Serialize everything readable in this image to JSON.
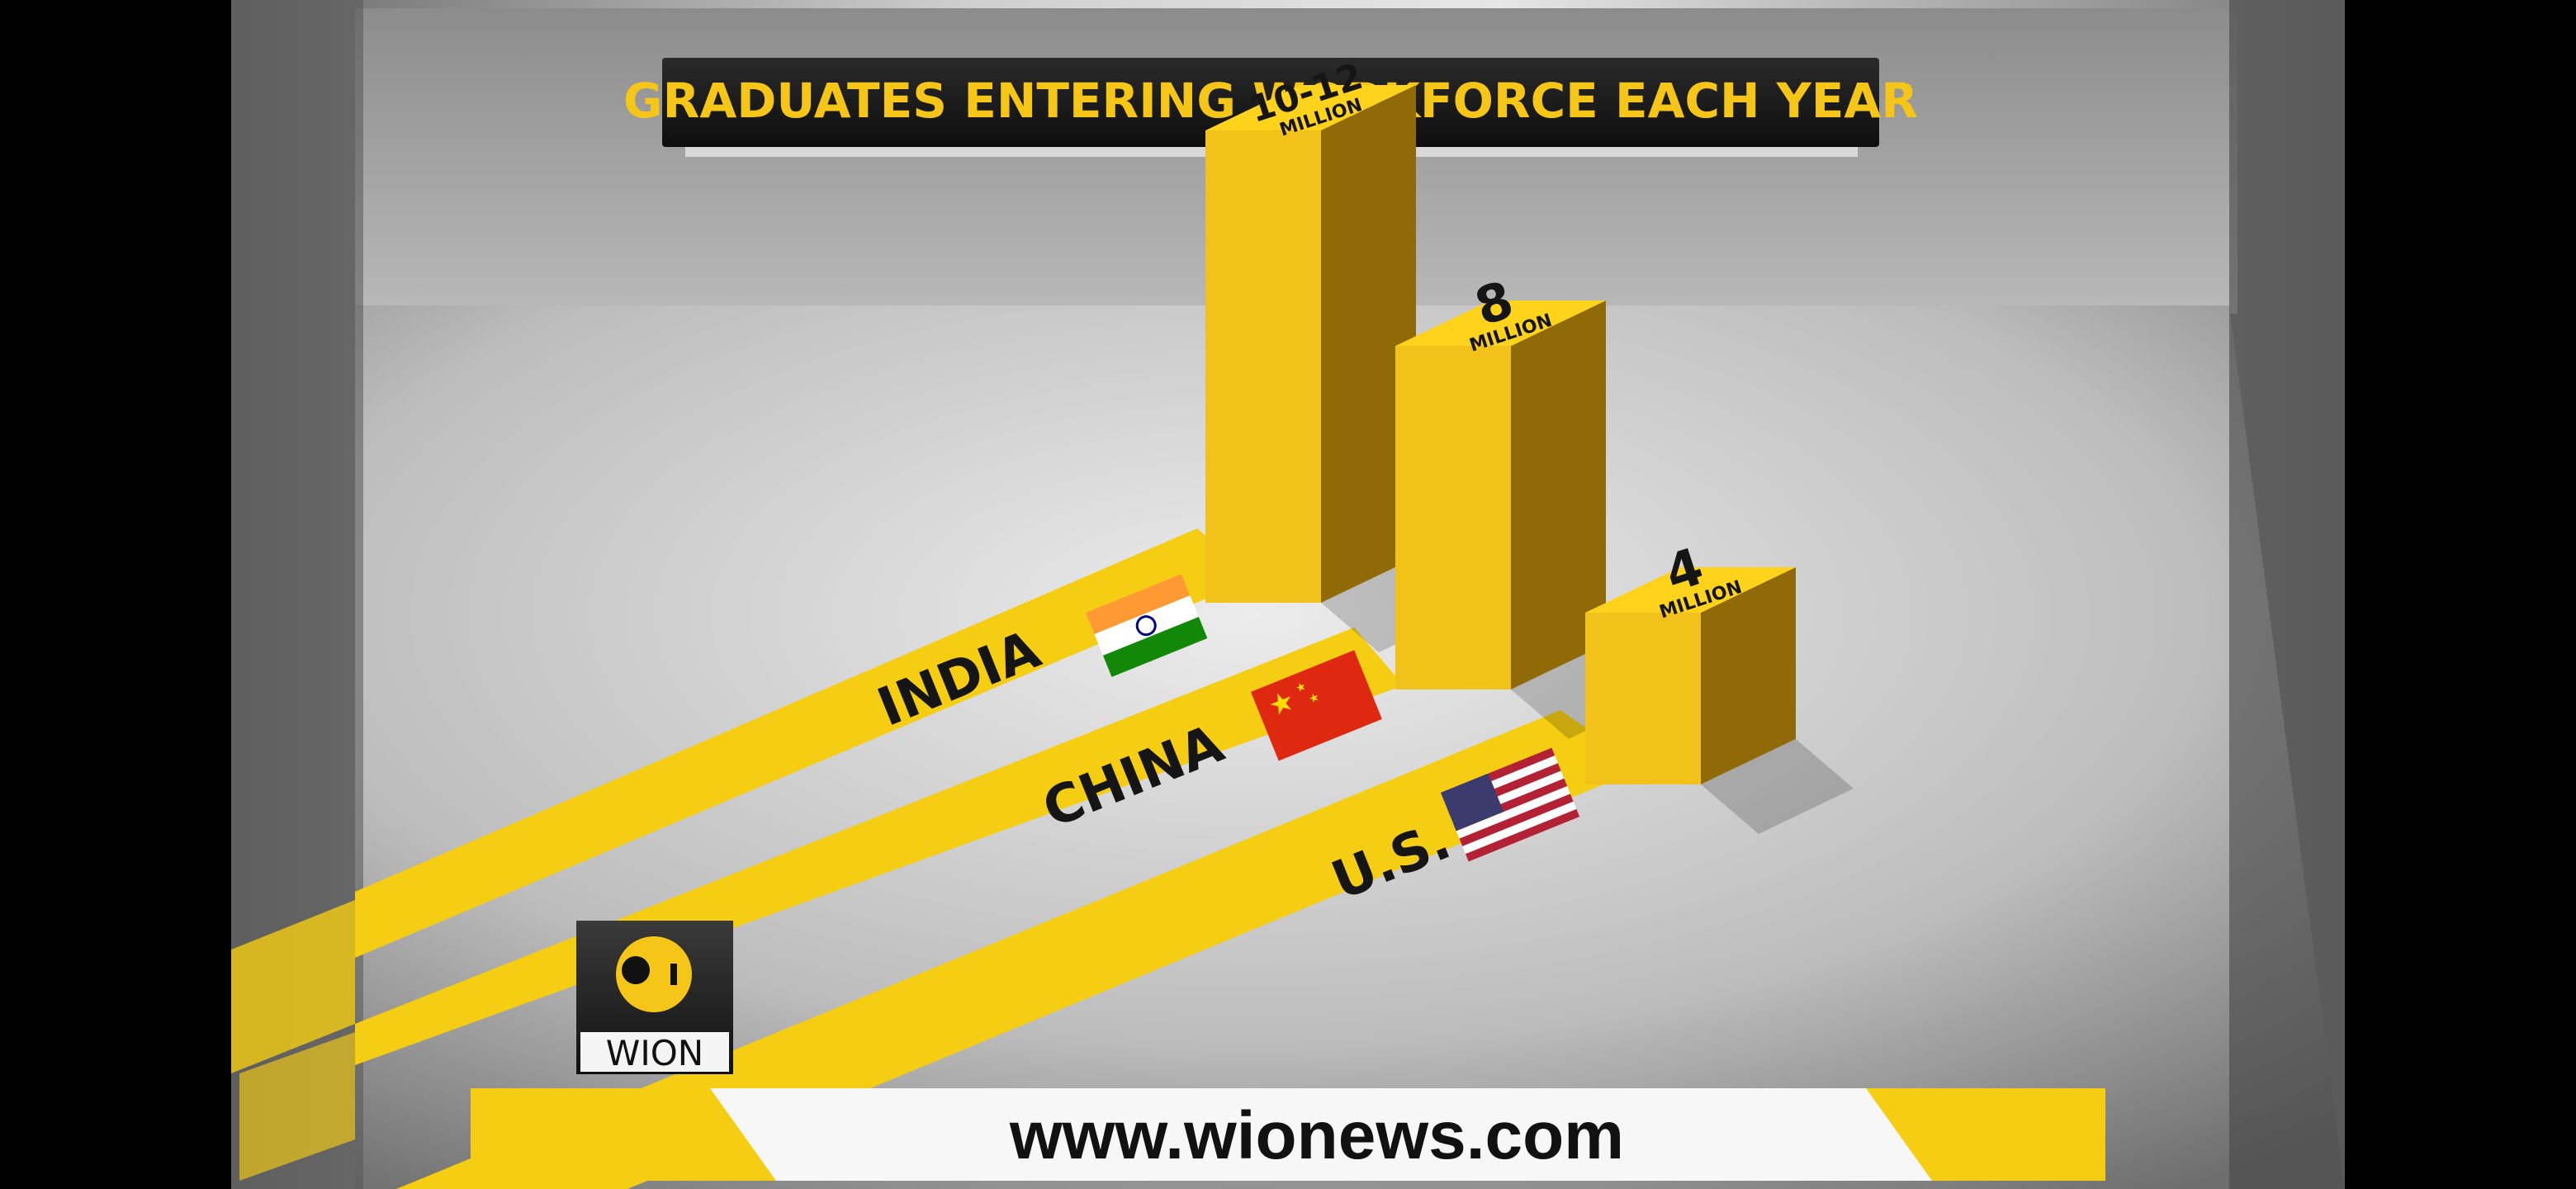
{
  "title": "GRADUATES ENTERING WORKFORCE EACH YEAR",
  "website": "www.wionews.com",
  "logo": {
    "text": "WION",
    "icon": "wion-logo-icon"
  },
  "colors": {
    "bar": "#f2c21a",
    "bar_dark": "#8f6a06",
    "track": "#f5cd12",
    "title_text": "#f5c518"
  },
  "chart_data": {
    "type": "bar",
    "title": "GRADUATES ENTERING WORKFORCE EACH YEAR",
    "categories": [
      "INDIA",
      "CHINA",
      "U.S."
    ],
    "values": [
      11,
      8,
      4
    ],
    "value_labels": [
      {
        "main": "10-12",
        "unit": "MILLION"
      },
      {
        "main": "8",
        "unit": "MILLION"
      },
      {
        "main": "4",
        "unit": "MILLION"
      }
    ],
    "flags": [
      "india-flag-icon",
      "china-flag-icon",
      "us-flag-icon"
    ],
    "ylim": [
      0,
      12
    ]
  }
}
